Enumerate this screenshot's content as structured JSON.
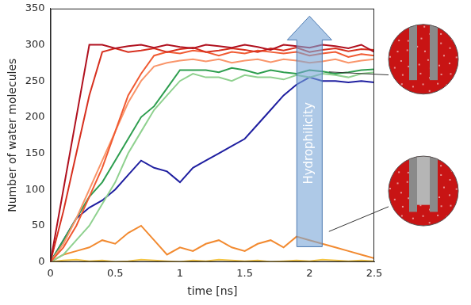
{
  "chart_data": {
    "type": "line",
    "x_label": "time [ns]",
    "y_label": "Number of water molecules",
    "annotations": [
      {
        "text": "Hydrophilicity"
      }
    ],
    "x": [
      0,
      0.1,
      0.2,
      0.3,
      0.4,
      0.5,
      0.6,
      0.7,
      0.8,
      0.9,
      1.0,
      1.1,
      1.2,
      1.3,
      1.4,
      1.5,
      1.6,
      1.7,
      1.8,
      1.9,
      2.0,
      2.1,
      2.2,
      2.3,
      2.4,
      2.5
    ],
    "xlim": [
      0,
      2.5
    ],
    "xticks": [
      0,
      0.5,
      1,
      1.5,
      2,
      2.5
    ],
    "ylim": [
      0,
      350
    ],
    "yticks": [
      0,
      50,
      100,
      150,
      200,
      250,
      300,
      350
    ],
    "grid": false,
    "series": [
      {
        "color": "#b0101e",
        "values": [
          0,
          100,
          200,
          300,
          300,
          295,
          298,
          300,
          296,
          300,
          297,
          295,
          300,
          298,
          296,
          300,
          297,
          293,
          300,
          298,
          296,
          300,
          298,
          295,
          300,
          290
        ]
      },
      {
        "color": "#d7301f",
        "values": [
          0,
          70,
          150,
          230,
          290,
          295,
          290,
          292,
          295,
          290,
          294,
          296,
          290,
          292,
          295,
          293,
          290,
          295,
          292,
          296,
          290,
          293,
          295,
          291,
          294,
          293
        ]
      },
      {
        "color": "#f05a32",
        "values": [
          0,
          20,
          50,
          90,
          130,
          180,
          230,
          260,
          285,
          290,
          288,
          292,
          290,
          285,
          290,
          288,
          292,
          290,
          288,
          290,
          285,
          288,
          290,
          283,
          287,
          285
        ]
      },
      {
        "color": "#f9956a",
        "values": [
          0,
          25,
          60,
          100,
          140,
          180,
          220,
          250,
          270,
          275,
          278,
          280,
          277,
          280,
          275,
          278,
          280,
          276,
          280,
          278,
          275,
          277,
          280,
          275,
          278,
          280
        ]
      },
      {
        "color": "#2e9e4f",
        "values": [
          0,
          30,
          60,
          90,
          110,
          140,
          170,
          200,
          215,
          240,
          265,
          265,
          265,
          262,
          268,
          265,
          260,
          265,
          262,
          260,
          265,
          263,
          260,
          262,
          265,
          266
        ]
      },
      {
        "color": "#8fd18f",
        "values": [
          0,
          10,
          30,
          50,
          80,
          110,
          150,
          180,
          210,
          230,
          250,
          260,
          255,
          255,
          250,
          258,
          255,
          255,
          252,
          258,
          255,
          260,
          258,
          255,
          260,
          262
        ]
      },
      {
        "color": "#1f1fa0",
        "values": [
          0,
          30,
          60,
          75,
          85,
          100,
          120,
          140,
          130,
          125,
          110,
          130,
          140,
          150,
          160,
          170,
          190,
          210,
          230,
          245,
          255,
          250,
          250,
          248,
          250,
          248
        ]
      },
      {
        "color": "#f28a30",
        "values": [
          0,
          10,
          15,
          20,
          30,
          25,
          40,
          50,
          30,
          10,
          20,
          15,
          25,
          30,
          20,
          15,
          25,
          30,
          20,
          35,
          30,
          25,
          20,
          15,
          10,
          5
        ]
      },
      {
        "color": "#f5c542",
        "values": [
          0,
          2,
          3,
          1,
          2,
          0,
          1,
          3,
          2,
          1,
          0,
          2,
          1,
          3,
          2,
          1,
          2,
          0,
          1,
          2,
          1,
          3,
          2,
          1,
          2,
          1
        ]
      }
    ]
  }
}
